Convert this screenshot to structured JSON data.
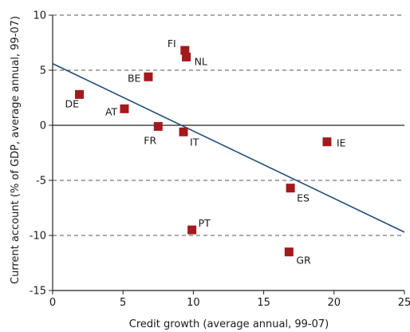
{
  "chart_data": {
    "type": "scatter",
    "title": "",
    "xlabel": "Credit growth (average annual, 99-07)",
    "ylabel": "Current account (% of GDP, average annual, 99-07)",
    "xlim": [
      0,
      25
    ],
    "ylim": [
      -15,
      10
    ],
    "xticks": [
      "0",
      "5",
      "10",
      "15",
      "20",
      "25"
    ],
    "yticks": [
      "10",
      "5",
      "0",
      "-5",
      "-10",
      "-15"
    ],
    "grid": "horizontal dashed",
    "points": [
      {
        "label": "FI",
        "x": 9.4,
        "y": 6.8
      },
      {
        "label": "NL",
        "x": 9.5,
        "y": 6.2
      },
      {
        "label": "BE",
        "x": 6.8,
        "y": 4.4
      },
      {
        "label": "DE",
        "x": 1.9,
        "y": 2.8
      },
      {
        "label": "AT",
        "x": 5.1,
        "y": 1.5
      },
      {
        "label": "FR",
        "x": 7.5,
        "y": -0.1
      },
      {
        "label": "IT",
        "x": 9.3,
        "y": -0.6
      },
      {
        "label": "IE",
        "x": 19.5,
        "y": -1.5
      },
      {
        "label": "ES",
        "x": 16.9,
        "y": -5.7
      },
      {
        "label": "PT",
        "x": 9.9,
        "y": -9.5
      },
      {
        "label": "GR",
        "x": 16.8,
        "y": -11.5
      }
    ],
    "trendline": {
      "x": [
        0,
        25
      ],
      "y": [
        5.6,
        -9.7
      ]
    },
    "colors": {
      "marker": "#a3191c",
      "trendline": "#1f4e79",
      "grid": "#555555",
      "axis": "#222222"
    }
  }
}
